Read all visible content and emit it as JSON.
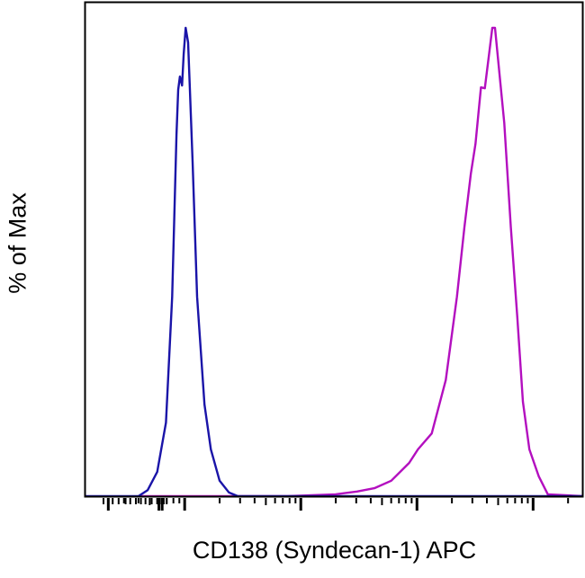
{
  "chart_data": {
    "type": "line",
    "subtype": "flow cytometry histogram",
    "title": "",
    "xlabel": "CD138 (Syndecan-1) APC",
    "ylabel": "% of Max",
    "x_scale": "log",
    "xlim": [
      14,
      270000
    ],
    "ylim": [
      0,
      100
    ],
    "grid": false,
    "legend": "none",
    "tick_labels_shown": false,
    "series": [
      {
        "color": "#b30fbf",
        "x": [
          40,
          766,
          1990,
          3050,
          4300,
          6000,
          8570,
          10200,
          13400,
          17700,
          22100,
          25600,
          29100,
          31900,
          35600,
          38400,
          42100,
          44500,
          47000,
          56500,
          64300,
          73100,
          81700,
          92900,
          112000,
          134000,
          270000
        ],
        "y": [
          0,
          0,
          0.4,
          1,
          1.7,
          3.3,
          7.1,
          10,
          13.4,
          24.8,
          42.6,
          57.4,
          68.9,
          75.2,
          87.3,
          87.1,
          95,
          100,
          100,
          79.7,
          57.4,
          38.2,
          20.2,
          10,
          4.2,
          0.4,
          0
        ]
      },
      {
        "color": "#1a14a8",
        "x": [
          14,
          40,
          48,
          58,
          69,
          78,
          85,
          88,
          91,
          95,
          98,
          102,
          107,
          111,
          117,
          128,
          148,
          168,
          200,
          240,
          287,
          270000
        ],
        "y": [
          0,
          0,
          1.3,
          5.2,
          15.7,
          42.6,
          77.2,
          86.8,
          89.6,
          87.7,
          94.4,
          100,
          96.9,
          86.8,
          71.4,
          42.6,
          19.6,
          10,
          3.3,
          0.8,
          0,
          0
        ]
      }
    ]
  }
}
